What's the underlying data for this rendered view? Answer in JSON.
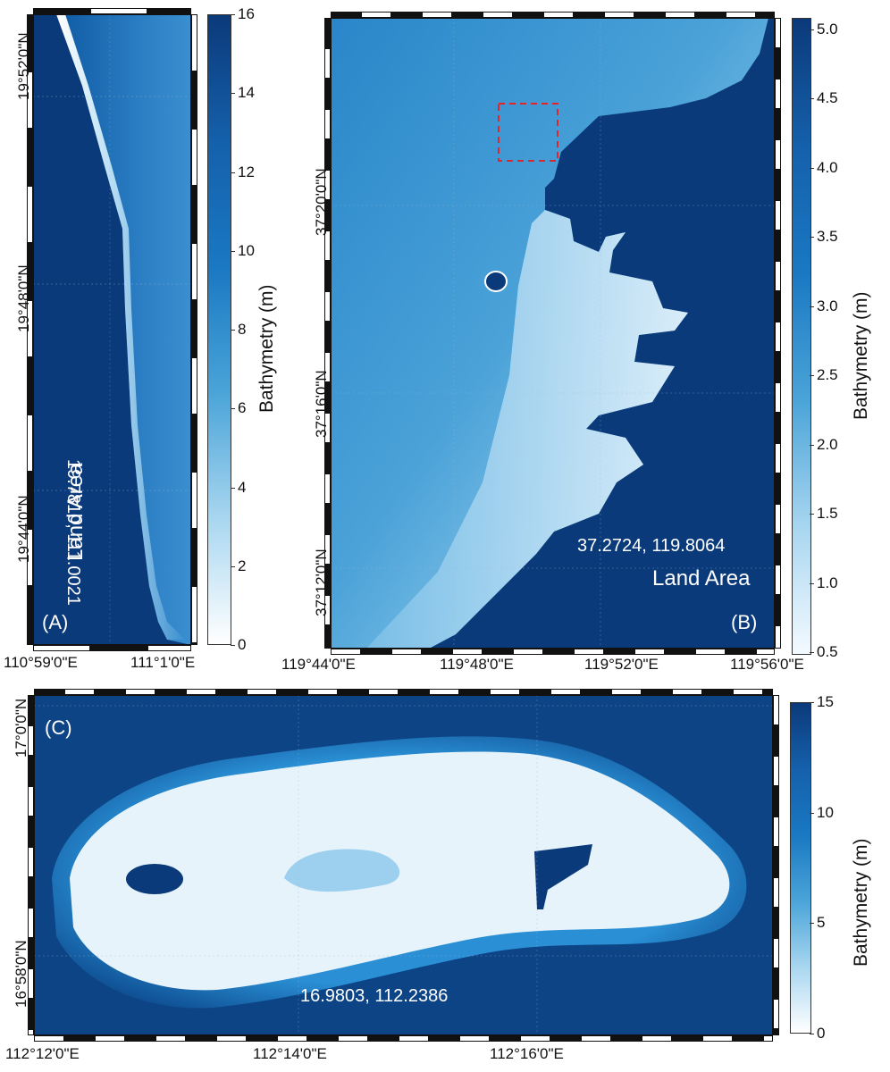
{
  "colors": {
    "deep": "#0b3a7a",
    "mid": "#1a78c2",
    "shallow": "#7ec8ec",
    "veryShallow": "#e6f3fb",
    "land": "#0b3a7a",
    "highlight_box": "#e0262b"
  },
  "panelA": {
    "letter": "(A)",
    "coords": "19.7810, 111.0021",
    "land_label": "Land Area",
    "y_ticks": [
      "19°52'0\"N",
      "19°48'0\"N",
      "19°44'0\"N"
    ],
    "x_ticks": [
      "110°59'0\"E",
      "111°1'0\"E"
    ],
    "colorbar": {
      "title": "Bathymetry (m)",
      "ticks": [
        "16",
        "14",
        "12",
        "10",
        "8",
        "6",
        "4",
        "2",
        "0"
      ],
      "min": 0,
      "max": 16
    }
  },
  "panelB": {
    "letter": "(B)",
    "coords": "37.2724, 119.8064",
    "land_label": "Land Area",
    "y_ticks": [
      "37°20'0\"N",
      "37°16'0\"N",
      "37°12'0\"N"
    ],
    "x_ticks": [
      "119°44'0\"E",
      "119°48'0\"E",
      "119°52'0\"E",
      "119°56'0\"E"
    ],
    "colorbar": {
      "title": "Bathymetry (m)",
      "ticks": [
        "5.0",
        "4.5",
        "4.0",
        "3.5",
        "3.0",
        "2.5",
        "2.0",
        "1.5",
        "1.0",
        "0.5"
      ],
      "min": 0.5,
      "max": 5.0
    }
  },
  "panelC": {
    "letter": "(C)",
    "coords": "16.9803, 112.2386",
    "y_ticks": [
      "17°0'0\"N",
      "16°58'0\"N"
    ],
    "x_ticks": [
      "112°12'0\"E",
      "112°14'0\"E",
      "112°16'0\"E"
    ],
    "colorbar": {
      "title": "Bathymetry (m)",
      "ticks": [
        "15",
        "10",
        "5",
        "0"
      ],
      "min": 0,
      "max": 15
    }
  }
}
